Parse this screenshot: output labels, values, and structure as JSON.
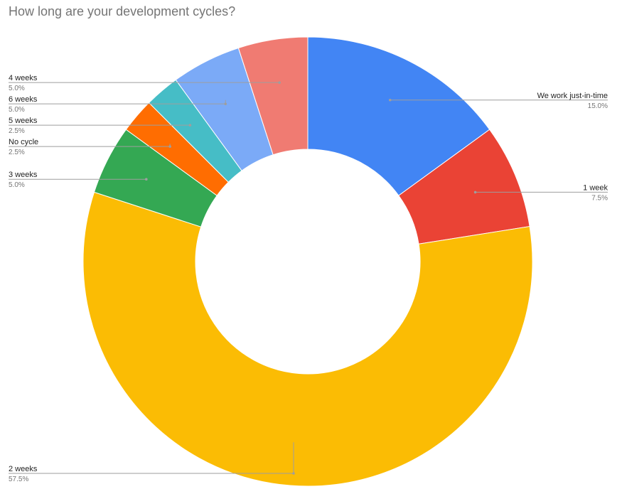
{
  "chart_data": {
    "type": "pie",
    "donut": true,
    "title": "How long are your development cycles?",
    "slices": [
      {
        "label": "We work just-in-time",
        "value": 15.0,
        "percent_label": "15.0%",
        "color": "#4285f4",
        "label_side": "right"
      },
      {
        "label": "1 week",
        "value": 7.5,
        "percent_label": "7.5%",
        "color": "#ea4335",
        "label_side": "right"
      },
      {
        "label": "2 weeks",
        "value": 57.5,
        "percent_label": "57.5%",
        "color": "#fbbc04",
        "label_side": "left"
      },
      {
        "label": "3 weeks",
        "value": 5.0,
        "percent_label": "5.0%",
        "color": "#34a853",
        "label_side": "left"
      },
      {
        "label": "No cycle",
        "value": 2.5,
        "percent_label": "2.5%",
        "color": "#ff6d01",
        "label_side": "left"
      },
      {
        "label": "5 weeks",
        "value": 2.5,
        "percent_label": "2.5%",
        "color": "#46bdc6",
        "label_side": "left"
      },
      {
        "label": "6 weeks",
        "value": 5.0,
        "percent_label": "5.0%",
        "color": "#7baaf7",
        "label_side": "left"
      },
      {
        "label": "4 weeks",
        "value": 5.0,
        "percent_label": "5.0%",
        "color": "#f07b72",
        "label_side": "left"
      }
    ]
  }
}
